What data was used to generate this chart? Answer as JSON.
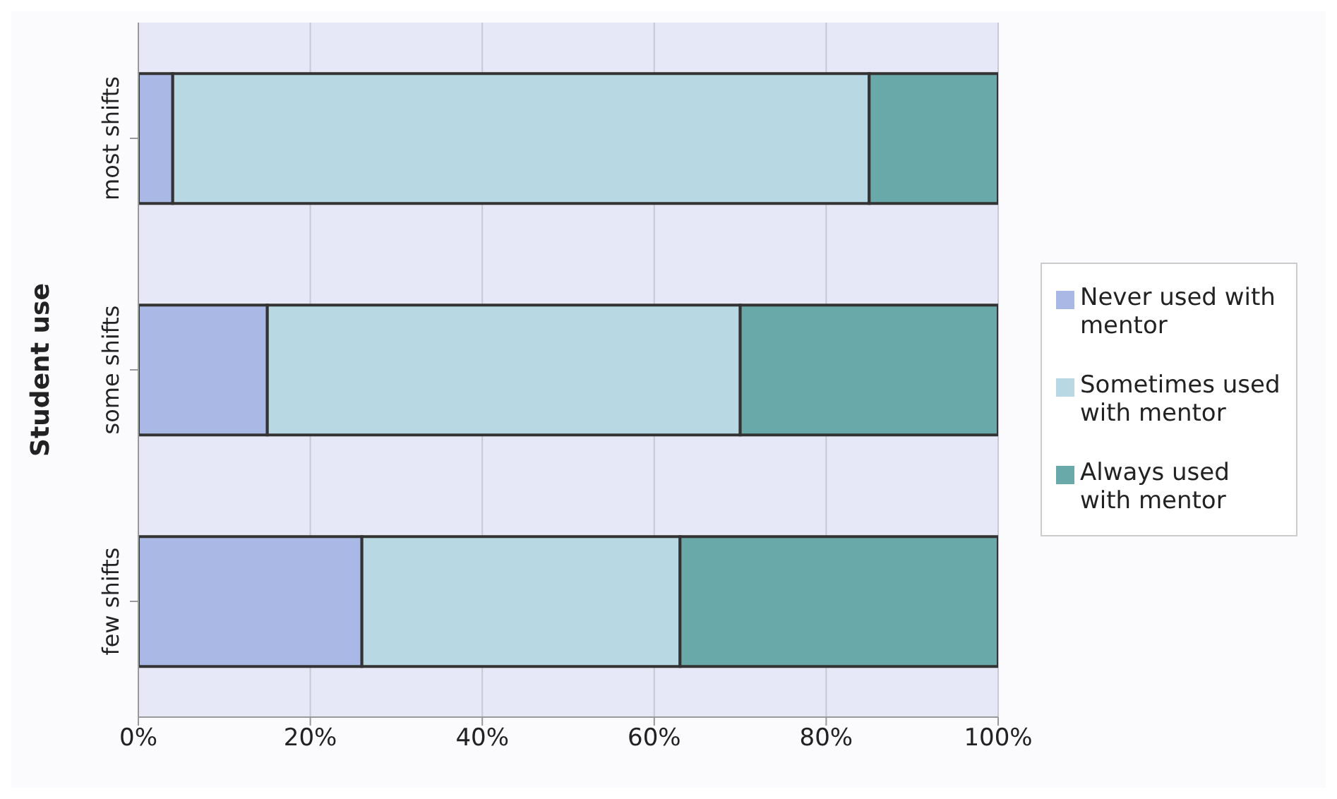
{
  "chart_data": {
    "type": "bar",
    "orientation": "horizontal",
    "stacked": true,
    "ylabel": "Student use",
    "categories": [
      "most shifts",
      "some shifts",
      "few shifts"
    ],
    "series": [
      {
        "name": "Never used with mentor",
        "color": "#a9b8e4",
        "values": [
          4,
          15,
          26
        ]
      },
      {
        "name": "Sometimes used with mentor",
        "color": "#b8d8e4",
        "values": [
          81,
          55,
          37
        ]
      },
      {
        "name": "Always used with mentor",
        "color": "#6aa9aa",
        "values": [
          15,
          30,
          37
        ]
      }
    ],
    "xlim": [
      0,
      100
    ],
    "xticks": [
      {
        "value": 0,
        "label": "0%"
      },
      {
        "value": 20,
        "label": "20%"
      },
      {
        "value": 40,
        "label": "40%"
      },
      {
        "value": 60,
        "label": "60%"
      },
      {
        "value": 80,
        "label": "80%"
      },
      {
        "value": 100,
        "label": "100%"
      }
    ],
    "grid": "x",
    "legend": "right"
  }
}
